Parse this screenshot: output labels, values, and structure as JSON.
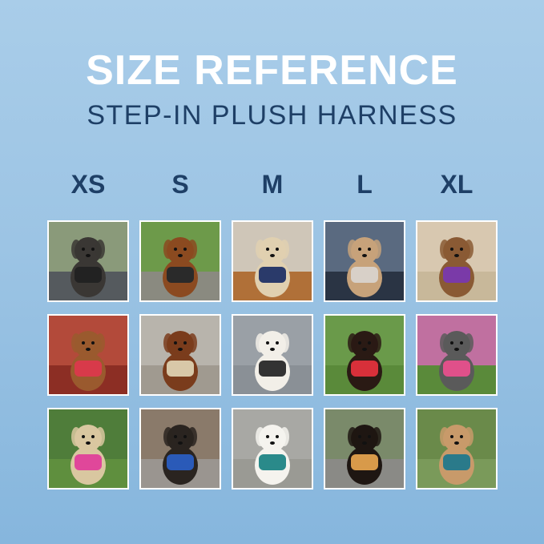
{
  "title": "SIZE REFERENCE",
  "subtitle": "STEP-IN PLUSH HARNESS",
  "sizes": [
    {
      "label": "XS",
      "photos": [
        {
          "bg": "#8a9a7a",
          "ground": "#555a5e",
          "dog": "#3a3734",
          "harness": "#222222"
        },
        {
          "bg": "#b34a3a",
          "ground": "#8c2e24",
          "dog": "#9a5a2e",
          "harness": "#d83a4a"
        },
        {
          "bg": "#4f7d3a",
          "ground": "#5f8f3e",
          "dog": "#d9c7a0",
          "harness": "#e0479a"
        }
      ]
    },
    {
      "label": "S",
      "photos": [
        {
          "bg": "#6d9a4a",
          "ground": "#8a8a80",
          "dog": "#8b4a20",
          "harness": "#2a2a2a"
        },
        {
          "bg": "#b8b4ac",
          "ground": "#a09a90",
          "dog": "#7a3c1c",
          "harness": "#d8c8a8"
        },
        {
          "bg": "#8a7a6a",
          "ground": "#9a9590",
          "dog": "#2a2420",
          "harness": "#2a5ab8"
        }
      ]
    },
    {
      "label": "M",
      "photos": [
        {
          "bg": "#cfc6b8",
          "ground": "#b07038",
          "dog": "#e0d0b0",
          "harness": "#2a3a6a"
        },
        {
          "bg": "#9aa0a6",
          "ground": "#8a9096",
          "dog": "#f2efe8",
          "harness": "#333333"
        },
        {
          "bg": "#a8a8a4",
          "ground": "#9a9a94",
          "dog": "#f5f3ee",
          "harness": "#2a8a8a"
        }
      ]
    },
    {
      "label": "L",
      "photos": [
        {
          "bg": "#5a6a80",
          "ground": "#2a3444",
          "dog": "#c7a27a",
          "harness": "#d8d0c8"
        },
        {
          "bg": "#6a9a4a",
          "ground": "#5a8a3a",
          "dog": "#2a1a14",
          "harness": "#d8303a"
        },
        {
          "bg": "#7a8a6a",
          "ground": "#8a8a86",
          "dog": "#1e1612",
          "harness": "#d89a4a"
        }
      ]
    },
    {
      "label": "XL",
      "photos": [
        {
          "bg": "#d8c8b0",
          "ground": "#c8b89a",
          "dog": "#8a5a34",
          "harness": "#7a3aa8"
        },
        {
          "bg": "#c070a0",
          "ground": "#5a8a3a",
          "dog": "#5a5a5a",
          "harness": "#e0508a"
        },
        {
          "bg": "#6a8a4a",
          "ground": "#7a9a5a",
          "dog": "#c89a6a",
          "harness": "#2a7a8a"
        }
      ]
    }
  ]
}
